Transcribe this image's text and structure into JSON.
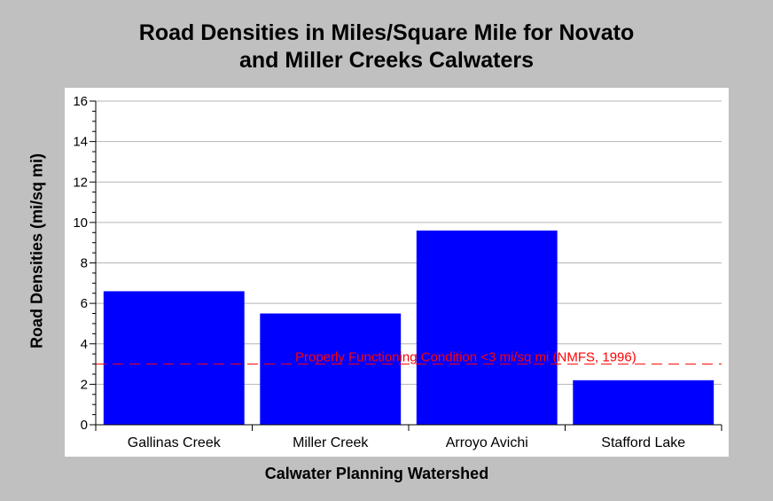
{
  "chart_data": {
    "type": "bar",
    "title_lines": [
      "Road Densities in Miles/Square Mile for Novato",
      "and Miller Creeks Calwaters"
    ],
    "xlabel": "Calwater Planning Watershed",
    "ylabel": "Road Densities (mi/sq mi)",
    "categories": [
      "Gallinas Creek",
      "Miller Creek",
      "Arroyo Avichi",
      "Stafford Lake"
    ],
    "values": [
      6.6,
      5.5,
      9.6,
      2.2
    ],
    "ylim": [
      0,
      16
    ],
    "yticks": [
      "0",
      "2",
      "4",
      "6",
      "8",
      "10",
      "12",
      "14",
      "16"
    ],
    "grid": true,
    "reference_line": {
      "value": 3,
      "label": "Properly Functioning Condition <3 mi/sq mi (NMFS, 1996)",
      "color": "#ff0000",
      "style": "dashed"
    },
    "bar_color": "#0000ff"
  }
}
